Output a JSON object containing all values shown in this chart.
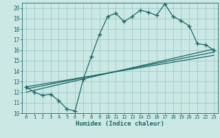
{
  "xlabel": "Humidex (Indice chaleur)",
  "bg_color": "#cce8e4",
  "grid_color": "#99cccc",
  "line_color": "#1a6666",
  "xlim": [
    -0.5,
    23.5
  ],
  "ylim": [
    10,
    20.5
  ],
  "xticks": [
    0,
    1,
    2,
    3,
    4,
    5,
    6,
    7,
    8,
    9,
    10,
    11,
    12,
    13,
    14,
    15,
    16,
    17,
    18,
    19,
    20,
    21,
    22,
    23
  ],
  "yticks": [
    10,
    11,
    12,
    13,
    14,
    15,
    16,
    17,
    18,
    19,
    20
  ],
  "curve_x": [
    0,
    1,
    2,
    3,
    4,
    5,
    6,
    7,
    8,
    9,
    10,
    11,
    12,
    13,
    14,
    15,
    16,
    17,
    18,
    19,
    20,
    21,
    22,
    23
  ],
  "curve_y": [
    12.5,
    12.0,
    11.7,
    11.8,
    11.2,
    10.4,
    10.2,
    13.2,
    15.4,
    17.5,
    19.2,
    19.5,
    18.7,
    19.2,
    19.8,
    19.6,
    19.3,
    20.4,
    19.2,
    18.8,
    18.3,
    16.6,
    16.5,
    16.0
  ],
  "ref_line1_x": [
    0,
    23
  ],
  "ref_line1_y": [
    12.0,
    16.1
  ],
  "ref_line2_x": [
    0,
    23
  ],
  "ref_line2_y": [
    12.3,
    15.8
  ],
  "ref_line3_x": [
    0,
    23
  ],
  "ref_line3_y": [
    12.5,
    15.5
  ]
}
